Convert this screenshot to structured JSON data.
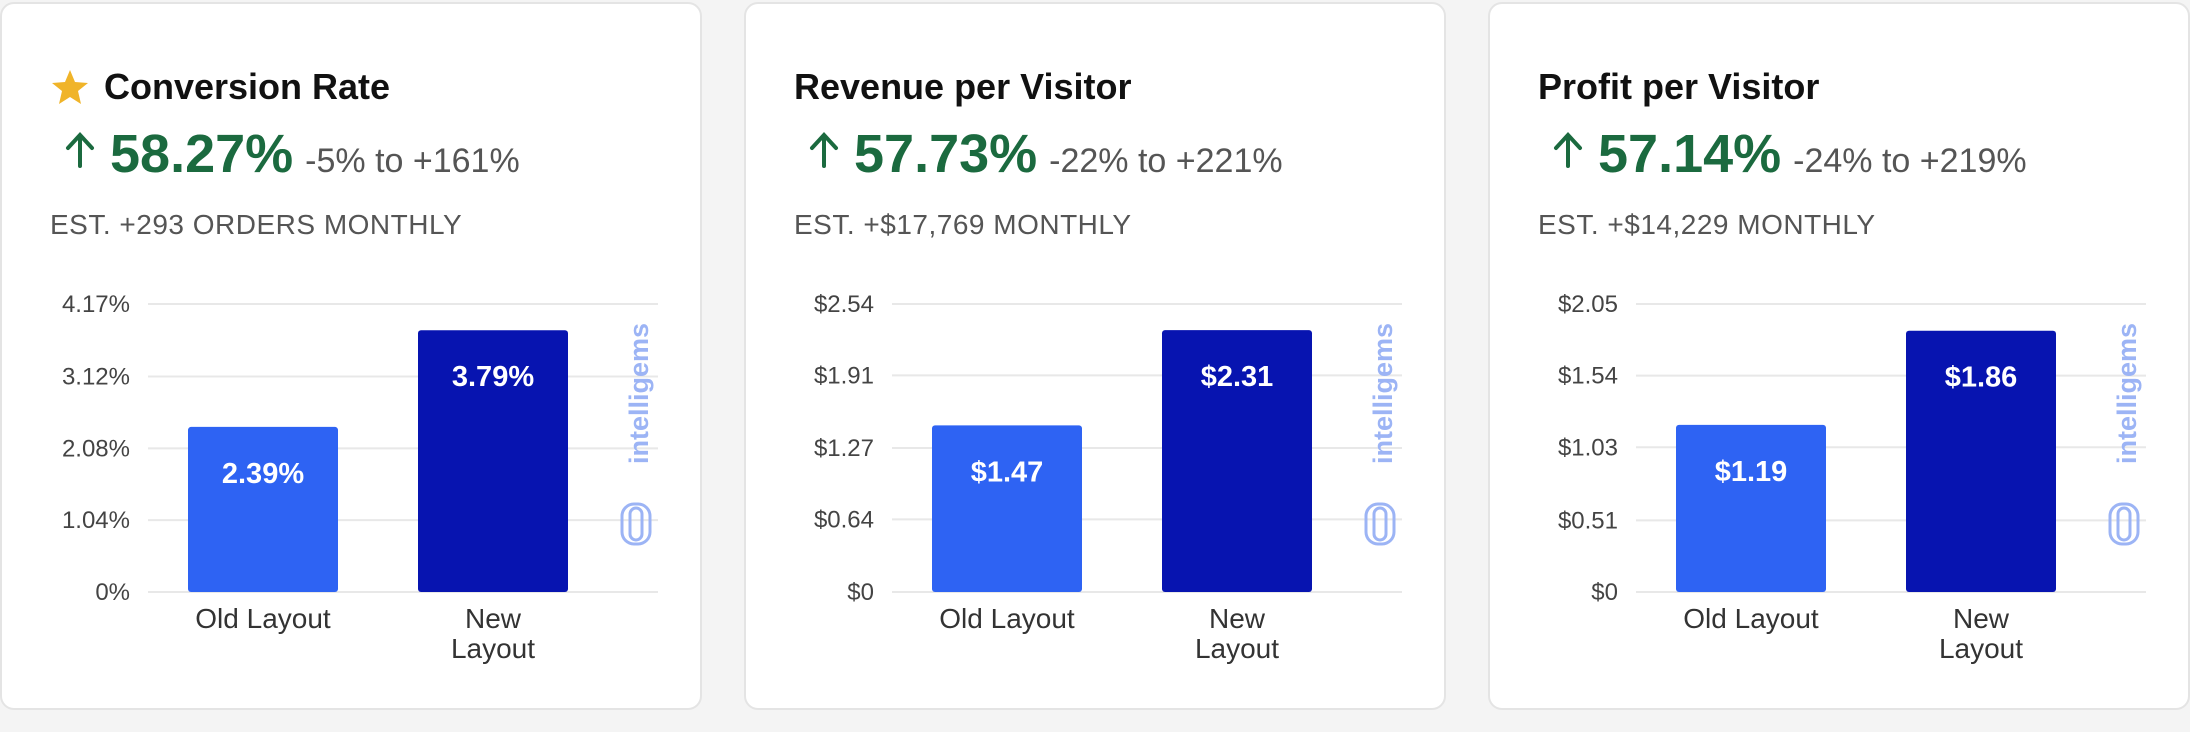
{
  "watermark": "intelligems",
  "chart_data": [
    {
      "type": "bar",
      "title": "Conversion Rate",
      "starred": true,
      "lift": "58.27%",
      "range": "-5% to +161%",
      "estimate": "EST. +293 ORDERS MONTHLY",
      "categories": [
        "Old Layout",
        "New Layout"
      ],
      "values": [
        2.39,
        3.79
      ],
      "value_labels": [
        "2.39%",
        "3.79%"
      ],
      "colors": [
        "#2e63f3",
        "#0714b0"
      ],
      "ylim": [
        0,
        4.17
      ],
      "yticks": [
        {
          "value": 0,
          "label": "0%"
        },
        {
          "value": 1.04,
          "label": "1.04%"
        },
        {
          "value": 2.08,
          "label": "2.08%"
        },
        {
          "value": 3.12,
          "label": "3.12%"
        },
        {
          "value": 4.17,
          "label": "4.17%"
        }
      ],
      "grid": true
    },
    {
      "type": "bar",
      "title": "Revenue per Visitor",
      "starred": false,
      "lift": "57.73%",
      "range": "-22% to +221%",
      "estimate": "EST. +$17,769 MONTHLY",
      "categories": [
        "Old Layout",
        "New Layout"
      ],
      "values": [
        1.47,
        2.31
      ],
      "value_labels": [
        "$1.47",
        "$2.31"
      ],
      "colors": [
        "#2e63f3",
        "#0714b0"
      ],
      "ylim": [
        0,
        2.54
      ],
      "yticks": [
        {
          "value": 0,
          "label": "$0"
        },
        {
          "value": 0.64,
          "label": "$0.64"
        },
        {
          "value": 1.27,
          "label": "$1.27"
        },
        {
          "value": 1.91,
          "label": "$1.91"
        },
        {
          "value": 2.54,
          "label": "$2.54"
        }
      ],
      "grid": true
    },
    {
      "type": "bar",
      "title": "Profit per Visitor",
      "starred": false,
      "lift": "57.14%",
      "range": "-24% to +219%",
      "estimate": "EST. +$14,229 MONTHLY",
      "categories": [
        "Old Layout",
        "New Layout"
      ],
      "values": [
        1.19,
        1.86
      ],
      "value_labels": [
        "$1.19",
        "$1.86"
      ],
      "colors": [
        "#2e63f3",
        "#0714b0"
      ],
      "ylim": [
        0,
        2.05
      ],
      "yticks": [
        {
          "value": 0,
          "label": "$0"
        },
        {
          "value": 0.51,
          "label": "$0.51"
        },
        {
          "value": 1.03,
          "label": "$1.03"
        },
        {
          "value": 1.54,
          "label": "$1.54"
        },
        {
          "value": 2.05,
          "label": "$2.05"
        }
      ],
      "grid": true
    }
  ]
}
